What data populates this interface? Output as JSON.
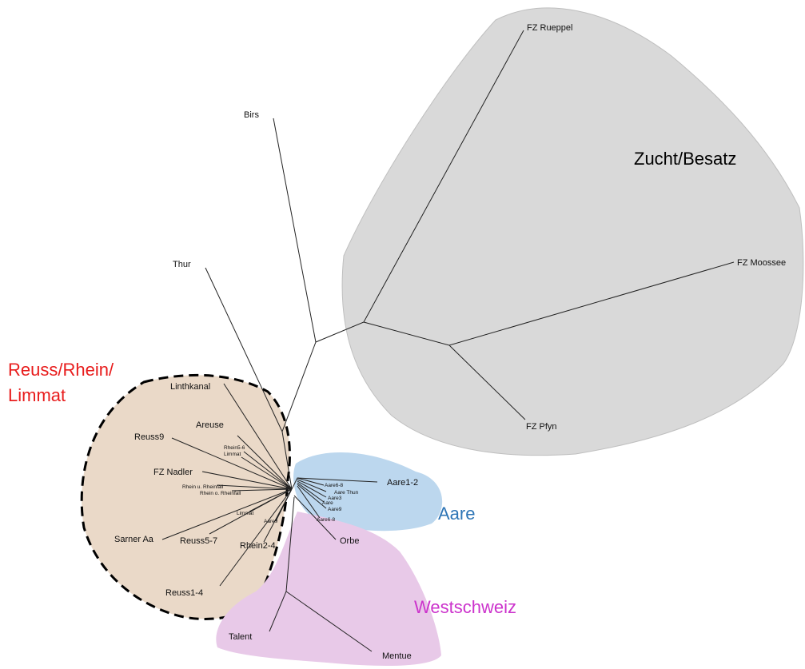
{
  "groups": [
    {
      "label": "Zucht/Besatz"
    },
    {
      "label_lines": [
        "Reuss/Rhein/",
        "Limmat"
      ]
    },
    {
      "label": "Aare"
    },
    {
      "label": "Westschweiz"
    }
  ],
  "nodes": [
    {
      "label": "FZ Rueppel"
    },
    {
      "label": "Birs"
    },
    {
      "label": "FZ Moossee"
    },
    {
      "label": "Thur"
    },
    {
      "label": "FZ Pfyn"
    },
    {
      "label": "Linthkanal"
    },
    {
      "label": "Areuse"
    },
    {
      "label": "Reuss9"
    },
    {
      "label": "Rhein5-6"
    },
    {
      "label": "Limmat"
    },
    {
      "label": "FZ Nadler"
    },
    {
      "label": "Rhein u. Rheinfall"
    },
    {
      "label": "Rhein o. Rheinfall"
    },
    {
      "label": "Limmat"
    },
    {
      "label": "Aare9"
    },
    {
      "label": "Sarner Aa"
    },
    {
      "label": "Reuss5-7"
    },
    {
      "label": "Rhein2-4"
    },
    {
      "label": "Reuss1-4"
    },
    {
      "label": "Aare1-2"
    },
    {
      "label": "Aare6-8"
    },
    {
      "label": "Aare Thun"
    },
    {
      "label": "Aare3"
    },
    {
      "label": "Aare"
    },
    {
      "label": "Aare9"
    },
    {
      "label": "Aare6-8"
    },
    {
      "label": "Orbe"
    },
    {
      "label": "Talent"
    },
    {
      "label": "Mentue"
    }
  ]
}
